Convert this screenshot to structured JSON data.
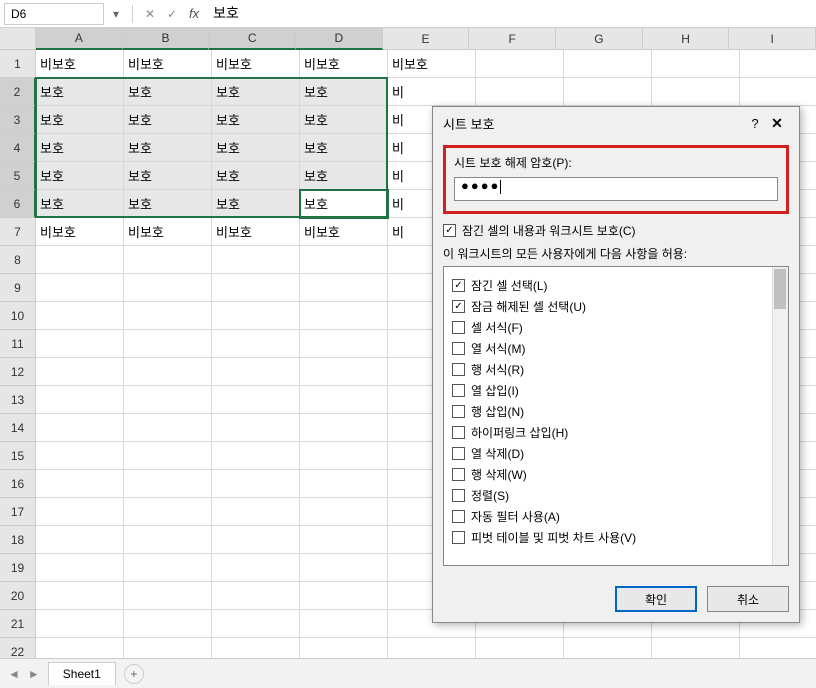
{
  "name_box": {
    "value": "D6"
  },
  "formula_bar": {
    "value": "보호"
  },
  "columns": [
    "A",
    "B",
    "C",
    "D",
    "E",
    "F",
    "G",
    "H",
    "I"
  ],
  "selected_cols": [
    "A",
    "B",
    "C",
    "D"
  ],
  "selected_rows": [
    2,
    3,
    4,
    5,
    6
  ],
  "row_count": 22,
  "active_cell": "D6",
  "cells": {
    "r1": [
      "비보호",
      "비보호",
      "비보호",
      "비보호",
      "비보호",
      "",
      "",
      "",
      ""
    ],
    "r2": [
      "보호",
      "보호",
      "보호",
      "보호",
      "비",
      "",
      "",
      "",
      ""
    ],
    "r3": [
      "보호",
      "보호",
      "보호",
      "보호",
      "비",
      "",
      "",
      "",
      ""
    ],
    "r4": [
      "보호",
      "보호",
      "보호",
      "보호",
      "비",
      "",
      "",
      "",
      ""
    ],
    "r5": [
      "보호",
      "보호",
      "보호",
      "보호",
      "비",
      "",
      "",
      "",
      ""
    ],
    "r6": [
      "보호",
      "보호",
      "보호",
      "보호",
      "비",
      "",
      "",
      "",
      ""
    ],
    "r7": [
      "비보호",
      "비보호",
      "비보호",
      "비보호",
      "비",
      "",
      "",
      "",
      ""
    ]
  },
  "selection": {
    "top_row": 2,
    "bottom_row": 6,
    "left_col": 1,
    "right_col": 4
  },
  "sheet_tab": {
    "name": "Sheet1"
  },
  "dialog": {
    "title": "시트 보호",
    "help": "?",
    "close": "✕",
    "password_label": "시트 보호 해제 암호(P):",
    "password_value": "●●●●",
    "protect_contents_label": "잠긴 셀의 내용과 워크시트 보호(C)",
    "protect_contents_checked": true,
    "permissions_label": "이 워크시트의 모든 사용자에게 다음 사항을 허용:",
    "permissions": [
      {
        "label": "잠긴 셀 선택(L)",
        "checked": true
      },
      {
        "label": "잠금 해제된 셀 선택(U)",
        "checked": true
      },
      {
        "label": "셀 서식(F)",
        "checked": false
      },
      {
        "label": "열 서식(M)",
        "checked": false
      },
      {
        "label": "행 서식(R)",
        "checked": false
      },
      {
        "label": "열 삽입(I)",
        "checked": false
      },
      {
        "label": "행 삽입(N)",
        "checked": false
      },
      {
        "label": "하이퍼링크 삽입(H)",
        "checked": false
      },
      {
        "label": "열 삭제(D)",
        "checked": false
      },
      {
        "label": "행 삭제(W)",
        "checked": false
      },
      {
        "label": "정렬(S)",
        "checked": false
      },
      {
        "label": "자동 필터 사용(A)",
        "checked": false
      },
      {
        "label": "피벗 테이블 및 피벗 차트 사용(V)",
        "checked": false
      }
    ],
    "ok_label": "확인",
    "cancel_label": "취소"
  },
  "colors": {
    "selection_border": "#217346",
    "highlight_box": "#d02020",
    "primary_btn_border": "#0066cc"
  }
}
